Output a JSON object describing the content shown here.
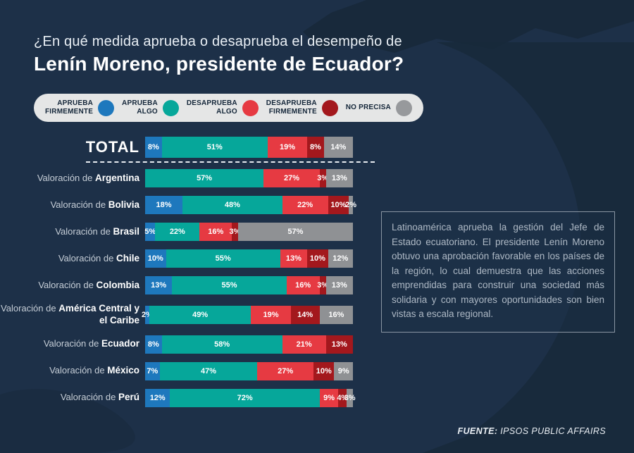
{
  "title": {
    "line1": "¿En qué medida aprueba o desaprueba el desempeño de",
    "line2": "Lenín Moreno, presidente de Ecuador?"
  },
  "legend": {
    "items": [
      {
        "name": "aprueba-firmemente",
        "line1": "APRUEBA",
        "line2": "FIRMEMENTE",
        "color": "#1e78bd"
      },
      {
        "name": "aprueba-algo",
        "line1": "APRUEBA",
        "line2": "ALGO",
        "color": "#06a79a"
      },
      {
        "name": "desaprueba-algo",
        "line1": "DESAPRUEBA",
        "line2": "ALGO",
        "color": "#e63a42"
      },
      {
        "name": "desaprueba-firmemente",
        "line1": "DESAPRUEBA",
        "line2": "FIRMEMENTE",
        "color": "#a3181d"
      },
      {
        "name": "no-precisa",
        "line1": "NO PRECISA",
        "line2": "",
        "color": "#97999c"
      }
    ]
  },
  "chart_data": {
    "type": "bar",
    "stacked": true,
    "orientation": "horizontal",
    "unit": "%",
    "series_names": [
      "Aprueba firmemente",
      "Aprueba algo",
      "Desaprueba algo",
      "Desaprueba firmemente",
      "No precisa"
    ],
    "series_colors": [
      "#1e78bd",
      "#06a79a",
      "#e63a42",
      "#a3181d",
      "#8f9194"
    ],
    "xlim": [
      0,
      100
    ],
    "rows": [
      {
        "prefix": "",
        "label": "TOTAL",
        "total_row": true,
        "values": [
          8,
          51,
          19,
          8,
          14
        ]
      },
      {
        "prefix": "Valoración de",
        "label": "Argentina",
        "total_row": false,
        "values": [
          0,
          57,
          27,
          3,
          13
        ]
      },
      {
        "prefix": "Valoración de",
        "label": "Bolivia",
        "total_row": false,
        "values": [
          18,
          48,
          22,
          10,
          2
        ]
      },
      {
        "prefix": "Valoración de",
        "label": "Brasil",
        "total_row": false,
        "values": [
          5,
          22,
          16,
          3,
          57
        ]
      },
      {
        "prefix": "Valoración de",
        "label": "Chile",
        "total_row": false,
        "values": [
          10,
          55,
          13,
          10,
          12
        ]
      },
      {
        "prefix": "Valoración de",
        "label": "Colombia",
        "total_row": false,
        "values": [
          13,
          55,
          16,
          3,
          13
        ]
      },
      {
        "prefix": "Valoración de",
        "label": "América Central y el Caribe",
        "total_row": false,
        "values": [
          2,
          49,
          19,
          14,
          16
        ]
      },
      {
        "prefix": "Valoración de",
        "label": "Ecuador",
        "total_row": false,
        "values": [
          8,
          58,
          21,
          13,
          0
        ]
      },
      {
        "prefix": "Valoración de",
        "label": "México",
        "total_row": false,
        "values": [
          7,
          47,
          27,
          10,
          9
        ]
      },
      {
        "prefix": "Valoración de",
        "label": "Perú",
        "total_row": false,
        "values": [
          12,
          72,
          9,
          4,
          3
        ]
      }
    ]
  },
  "sidebox": {
    "text": "Latinoamérica aprueba la gestión del Jefe de Estado ecuatoriano. El presidente Lenín Moreno obtuvo una aprobación favorable en los países de la región, lo cual demuestra que las acciones emprendidas para construir una sociedad más solidaria y con mayores oportunidades son bien vistas a escala regional."
  },
  "footer": {
    "source_label": "FUENTE:",
    "source_value": "IPSOS PUBLIC AFFAIRS"
  },
  "colors": {
    "background": "#1d3048",
    "map_silhouette": "#18293b",
    "legend_background": "#e5e6e6",
    "legend_text": "#142639",
    "dashed_separator": "#e7ecf1",
    "sidebox_border": "#8a96a3",
    "sidebox_text": "#aeb9c5"
  }
}
